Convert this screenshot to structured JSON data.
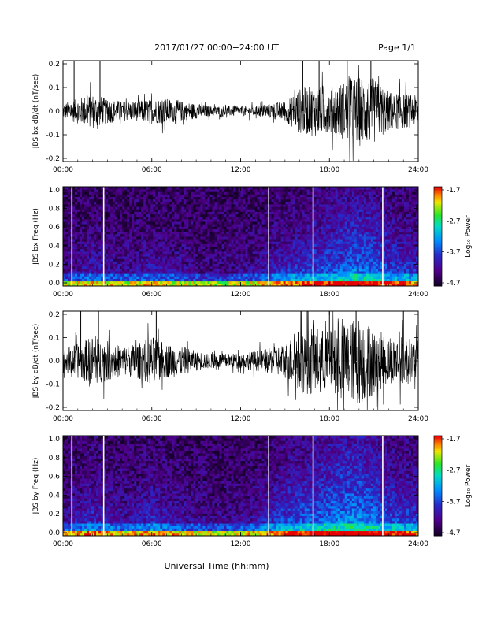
{
  "header": {
    "title": "2017/01/27  00:00−24:00 UT",
    "page": "Page 1/1"
  },
  "footer": {
    "xlabel": "Universal Time (hh:mm)"
  },
  "chart_data": [
    {
      "type": "line",
      "ylabel": "JBS bx dB/dt (nT/sec)",
      "ylim": [
        -0.2,
        0.2
      ],
      "yticks": [
        "0.2",
        "0.1",
        "0.0",
        "-0.1",
        "-0.2"
      ],
      "xticks": [
        "00:00",
        "06:00",
        "12:00",
        "18:00",
        "24:00"
      ],
      "xlim_hours": [
        0,
        24
      ],
      "series": [
        {
          "x_hours": [
            0,
            1,
            2,
            3,
            4,
            5,
            6,
            7,
            8,
            9,
            10,
            11,
            12,
            13,
            14,
            15,
            16,
            17,
            18,
            19,
            20,
            21,
            22,
            23,
            24
          ],
          "amplitude": [
            0.03,
            0.05,
            0.07,
            0.05,
            0.04,
            0.04,
            0.05,
            0.05,
            0.04,
            0.03,
            0.02,
            0.02,
            0.02,
            0.02,
            0.03,
            0.04,
            0.09,
            0.1,
            0.09,
            0.12,
            0.14,
            0.13,
            0.08,
            0.07,
            0.06
          ]
        }
      ],
      "spikes_hours": [
        0.75,
        2.5,
        16.2,
        17.3,
        19.2,
        20.8
      ]
    },
    {
      "type": "heatmap",
      "ylabel": "JBS bx Freq (Hz)",
      "ylim": [
        0.0,
        1.0
      ],
      "yticks": [
        "1.0",
        "0.8",
        "0.6",
        "0.4",
        "0.2",
        "0.0"
      ],
      "xticks": [
        "00:00",
        "06:00",
        "12:00",
        "18:00",
        "24:00"
      ],
      "colorbar": {
        "label": "Log₁₀ Power",
        "ticks": [
          "-1.7",
          "-2.7",
          "-3.7",
          "-4.7"
        ],
        "range": [
          -4.7,
          -1.7
        ]
      },
      "gaps_hours": [
        0.6,
        2.75,
        13.9,
        16.9,
        21.6
      ],
      "activity": [
        0.2,
        0.3,
        0.4,
        0.3,
        0.3,
        0.3,
        0.4,
        0.3,
        0.3,
        0.2,
        0.2,
        0.2,
        0.25,
        0.3,
        0.4,
        0.5,
        0.55,
        0.6,
        0.65,
        0.7,
        0.75,
        0.7,
        0.6,
        0.55,
        0.5
      ]
    },
    {
      "type": "line",
      "ylabel": "JBS by dB/dt (nT/sec)",
      "ylim": [
        -0.2,
        0.2
      ],
      "yticks": [
        "0.2",
        "0.1",
        "0.0",
        "-0.1",
        "-0.2"
      ],
      "xticks": [
        "00:00",
        "06:00",
        "12:00",
        "18:00",
        "24:00"
      ],
      "xlim_hours": [
        0,
        24
      ],
      "series": [
        {
          "x_hours": [
            0,
            1,
            2,
            3,
            4,
            5,
            6,
            7,
            8,
            9,
            10,
            11,
            12,
            13,
            14,
            15,
            16,
            17,
            18,
            19,
            20,
            21,
            22,
            23,
            24
          ],
          "amplitude": [
            0.05,
            0.07,
            0.1,
            0.08,
            0.06,
            0.07,
            0.1,
            0.07,
            0.06,
            0.04,
            0.03,
            0.03,
            0.03,
            0.04,
            0.05,
            0.07,
            0.13,
            0.14,
            0.12,
            0.15,
            0.18,
            0.14,
            0.09,
            0.1,
            0.08
          ]
        }
      ],
      "spikes_hours": [
        1.2,
        2.4,
        6.3,
        16.5,
        18.0,
        19.8,
        23.0
      ]
    },
    {
      "type": "heatmap",
      "ylabel": "JBS by Freq (Hz)",
      "ylim": [
        0.0,
        1.0
      ],
      "yticks": [
        "1.0",
        "0.8",
        "0.6",
        "0.4",
        "0.2",
        "0.0"
      ],
      "xticks": [
        "00:00",
        "06:00",
        "12:00",
        "18:00",
        "24:00"
      ],
      "colorbar": {
        "label": "Log₁₀ Power",
        "ticks": [
          "-1.7",
          "-2.7",
          "-3.7",
          "-4.7"
        ],
        "range": [
          -4.7,
          -1.7
        ]
      },
      "gaps_hours": [
        0.6,
        2.75,
        13.9,
        16.9,
        21.6
      ],
      "activity": [
        0.3,
        0.4,
        0.5,
        0.4,
        0.35,
        0.4,
        0.5,
        0.4,
        0.35,
        0.3,
        0.25,
        0.25,
        0.3,
        0.35,
        0.5,
        0.6,
        0.65,
        0.7,
        0.75,
        0.8,
        0.8,
        0.75,
        0.65,
        0.6,
        0.55
      ]
    }
  ]
}
